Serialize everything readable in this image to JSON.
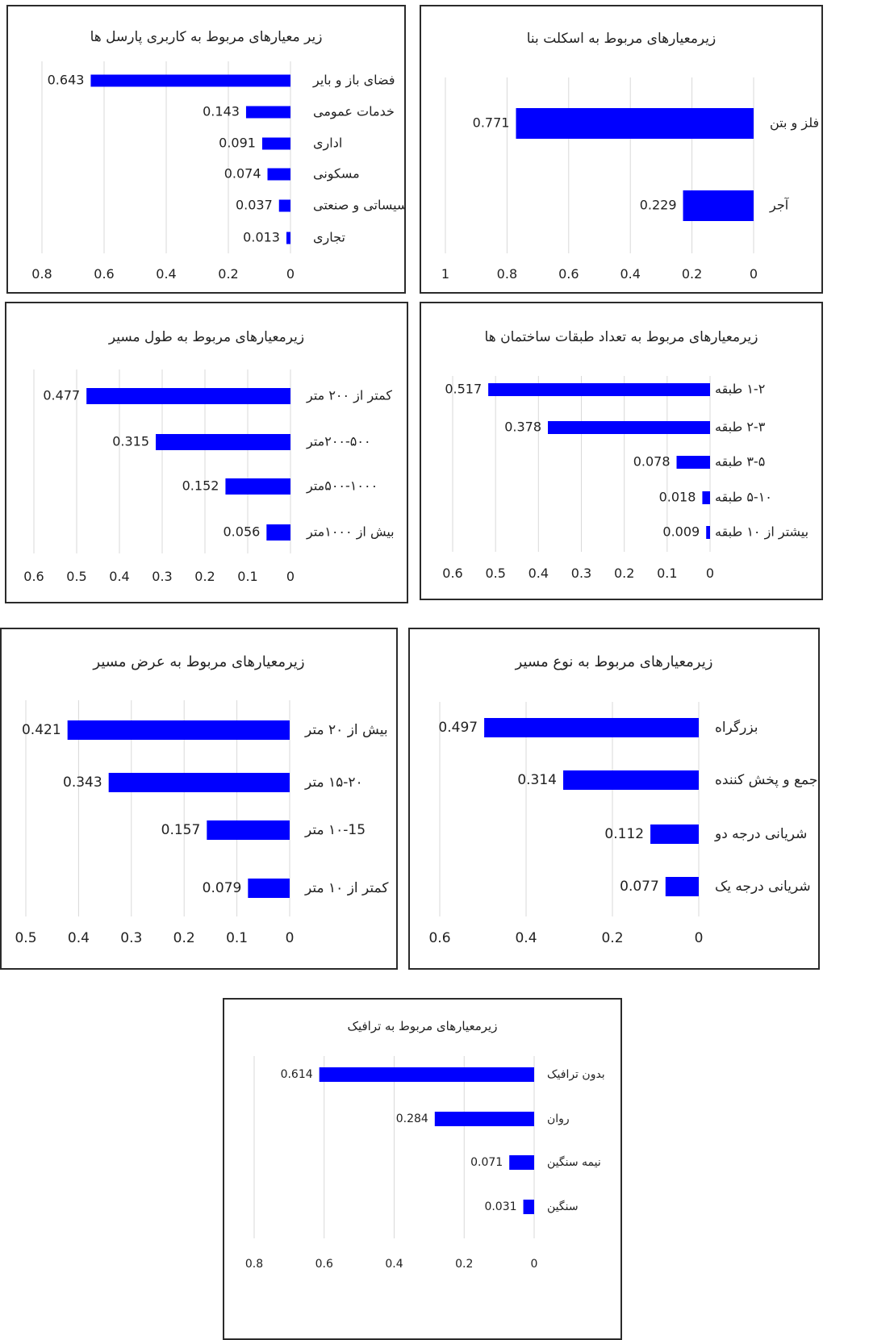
{
  "colors": {
    "bar": "#0000ff",
    "grid": "#d9d9d9",
    "text": "#222222",
    "border": "#2b2b2b"
  },
  "chart_data": [
    {
      "type": "bar",
      "orientation": "horizontal",
      "title": "زیر معیارهای مربوط به کاربری پارسل ها",
      "categories": [
        "فضای باز و بایر",
        "خدمات عمومی",
        "اداری",
        "مسکونی",
        "تأسیساتی و صنعتی",
        "تجاری"
      ],
      "values": [
        0.643,
        0.143,
        0.091,
        0.074,
        0.037,
        0.013
      ],
      "value_labels": [
        "0.643",
        "0.143",
        "0.091",
        "0.074",
        "0.037",
        "0.013"
      ],
      "xlim": [
        0,
        0.8
      ],
      "ticks": [
        "0.8",
        "0.6",
        "0.4",
        "0.2",
        "0"
      ],
      "grid": true
    },
    {
      "type": "bar",
      "orientation": "horizontal",
      "title": "زیرمعیارهای مربوط به اسکلت بنا",
      "categories": [
        "فلز و بتن",
        "آجر"
      ],
      "values": [
        0.771,
        0.229
      ],
      "value_labels": [
        "0.771",
        "0.229"
      ],
      "xlim": [
        0,
        1
      ],
      "ticks": [
        "1",
        "0.8",
        "0.6",
        "0.4",
        "0.2",
        "0"
      ],
      "grid": true
    },
    {
      "type": "bar",
      "orientation": "horizontal",
      "title": "زیرمعیارهای مربوط به طول مسیر",
      "categories": [
        "کمتر از ۲۰۰ متر",
        "۲۰۰-۵۰۰متر",
        "۵۰۰-۱۰۰۰متر",
        "بیش از ۱۰۰۰متر"
      ],
      "values": [
        0.477,
        0.315,
        0.152,
        0.056
      ],
      "value_labels": [
        "0.477",
        "0.315",
        "0.152",
        "0.056"
      ],
      "xlim": [
        0,
        0.6
      ],
      "ticks": [
        "0.6",
        "0.5",
        "0.4",
        "0.3",
        "0.2",
        "0.1",
        "0"
      ],
      "grid": true
    },
    {
      "type": "bar",
      "orientation": "horizontal",
      "title": "زیرمعیارهای مربوط به تعداد طبقات ساختمان ها",
      "categories": [
        "۱-۲ طبقه",
        "۲-۳ طبقه",
        "۳-۵ طبقه",
        "۵-۱۰ طبقه",
        "بیشتر از ۱۰ طبقه"
      ],
      "values": [
        0.517,
        0.378,
        0.078,
        0.018,
        0.009
      ],
      "value_labels": [
        "0.517",
        "0.378",
        "0.078",
        "0.018",
        "0.009"
      ],
      "xlim": [
        0,
        0.6
      ],
      "ticks": [
        "0.6",
        "0.5",
        "0.4",
        "0.3",
        "0.2",
        "0.1",
        "0"
      ],
      "grid": true
    },
    {
      "type": "bar",
      "orientation": "horizontal",
      "title": "زیرمعیارهای مربوط به عرض مسیر",
      "categories": [
        "بیش از ۲۰ متر",
        "۱۵-۲۰ متر",
        "۱۰-15 متر",
        "کمتر از ۱۰ متر"
      ],
      "values": [
        0.421,
        0.343,
        0.157,
        0.079
      ],
      "value_labels": [
        "0.421",
        "0.343",
        "0.157",
        "0.079"
      ],
      "xlim": [
        0,
        0.5
      ],
      "ticks": [
        "0.5",
        "0.4",
        "0.3",
        "0.2",
        "0.1",
        "0"
      ],
      "grid": true
    },
    {
      "type": "bar",
      "orientation": "horizontal",
      "title": "زیرمعیارهای مربوط به نوع مسیر",
      "categories": [
        "بزرگراه",
        "جمع و پخش کننده",
        "شریانی درجه دو",
        "شریانی درجه یک"
      ],
      "values": [
        0.497,
        0.314,
        0.112,
        0.077
      ],
      "value_labels": [
        "0.497",
        "0.314",
        "0.112",
        "0.077"
      ],
      "xlim": [
        0,
        0.6
      ],
      "ticks": [
        "0.6",
        "0.4",
        "0.2",
        "0"
      ],
      "grid": true
    },
    {
      "type": "bar",
      "orientation": "horizontal",
      "title": "زیرمعیارهای مربوط به ترافیک",
      "categories": [
        "بدون ترافیک",
        "روان",
        "نیمه سنگین",
        "سنگین"
      ],
      "values": [
        0.614,
        0.284,
        0.071,
        0.031
      ],
      "value_labels": [
        "0.614",
        "0.284",
        "0.071",
        "0.031"
      ],
      "xlim": [
        0,
        0.8
      ],
      "ticks": [
        "0.8",
        "0.6",
        "0.4",
        "0.2",
        "0"
      ],
      "grid": true
    }
  ]
}
